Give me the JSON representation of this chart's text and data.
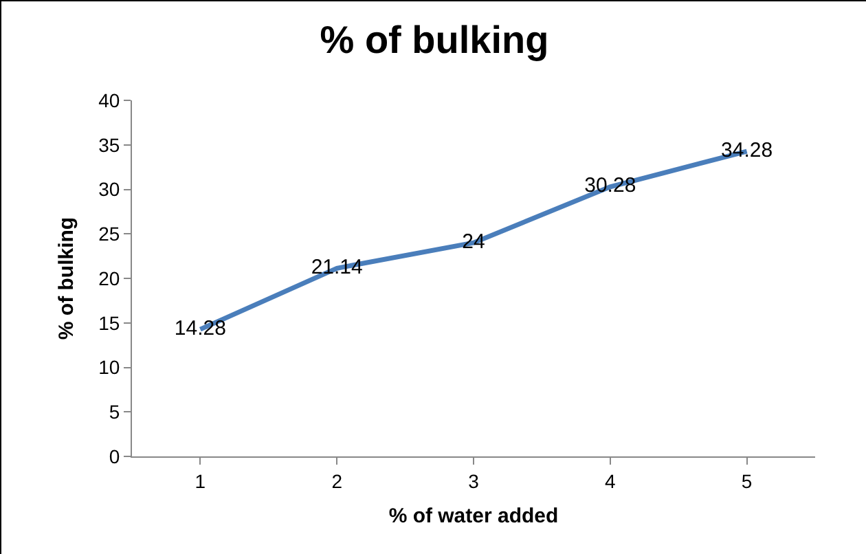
{
  "chart_data": {
    "type": "line",
    "title": "% of bulking",
    "xlabel": "% of water added",
    "ylabel": "% of bulking",
    "categories": [
      "1",
      "2",
      "3",
      "4",
      "5"
    ],
    "series": [
      {
        "color": "#4a7ebb",
        "values": [
          14.28,
          21.14,
          24,
          30.28,
          34.28
        ]
      }
    ],
    "ylim": [
      0,
      40
    ],
    "yticks": [
      0,
      5,
      10,
      15,
      20,
      25,
      30,
      35,
      40
    ],
    "grid": false,
    "data_labels": true,
    "marker": "none",
    "line_style": "solid"
  }
}
